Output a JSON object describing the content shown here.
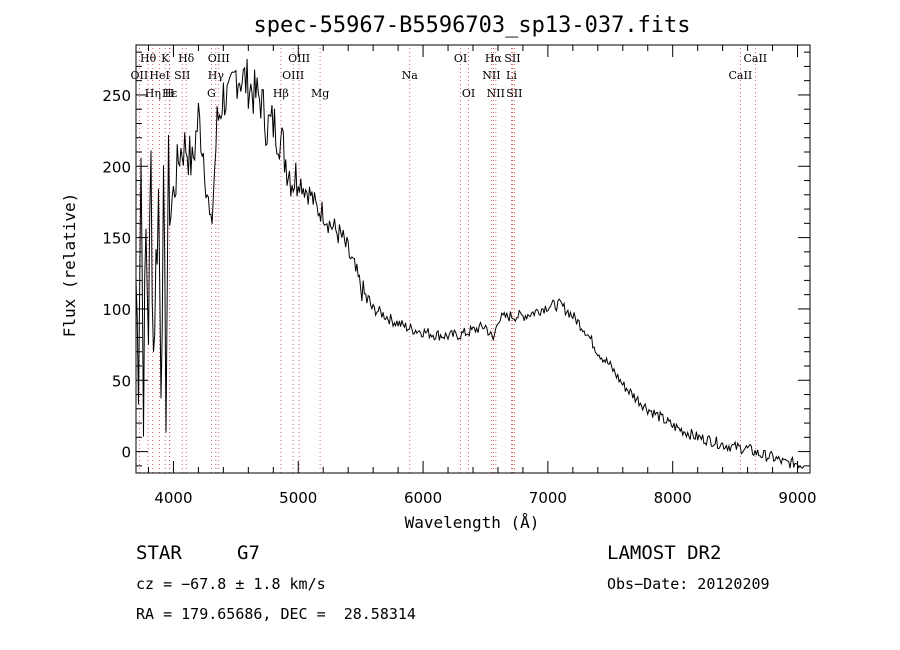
{
  "chart_data": {
    "type": "line",
    "title": "spec-55967-B5596703_sp13-037.fits",
    "xlabel": "Wavelength (Å)",
    "ylabel": "Flux (relative)",
    "xlim": [
      3700,
      9100
    ],
    "ylim": [
      -15,
      285
    ],
    "xticks": [
      4000,
      5000,
      6000,
      7000,
      8000,
      9000
    ],
    "yticks": [
      0,
      50,
      100,
      150,
      200,
      250
    ],
    "grid": false,
    "series": [
      {
        "x": [
          3700,
          3720,
          3740,
          3760,
          3780,
          3800,
          3820,
          3840,
          3860,
          3880,
          3900,
          3920,
          3940,
          3960,
          3980,
          4000,
          4050,
          4100,
          4150,
          4200,
          4250,
          4300,
          4350,
          4400,
          4450,
          4500,
          4550,
          4600,
          4650,
          4700,
          4750,
          4800,
          4850,
          4900,
          4950,
          5000,
          5050,
          5100,
          5150,
          5200,
          5250,
          5300,
          5350,
          5400,
          5450,
          5500,
          5550,
          5600,
          5650,
          5700,
          5750,
          5800,
          5900,
          6000,
          6100,
          6200,
          6300,
          6400,
          6500,
          6563,
          6600,
          6700,
          6800,
          6900,
          7000,
          7100,
          7200,
          7300,
          7400,
          7500,
          7600,
          7700,
          7800,
          7900,
          8000,
          8100,
          8200,
          8300,
          8400,
          8500,
          8600,
          8700,
          8800,
          8900,
          9000,
          9050
        ],
        "y": [
          120,
          60,
          210,
          40,
          150,
          90,
          200,
          70,
          130,
          180,
          60,
          170,
          40,
          190,
          170,
          180,
          210,
          215,
          200,
          235,
          205,
          150,
          230,
          250,
          245,
          265,
          262,
          258,
          250,
          247,
          228,
          230,
          222,
          205,
          192,
          192,
          185,
          180,
          170,
          168,
          160,
          155,
          150,
          140,
          128,
          115,
          106,
          100,
          98,
          95,
          92,
          90,
          86,
          84,
          82,
          81,
          82,
          85,
          88,
          78,
          93,
          95,
          95,
          98,
          102,
          103,
          95,
          85,
          70,
          60,
          47,
          38,
          30,
          24,
          18,
          14,
          10,
          8,
          5,
          3,
          2,
          -2,
          -4,
          -8,
          -8,
          -10
        ]
      }
    ],
    "emission_lines": [
      {
        "label": "Hθ",
        "wave": 3797,
        "row": 1
      },
      {
        "label": "K",
        "wave": 3934,
        "row": 1
      },
      {
        "label": "Hδ",
        "wave": 4102,
        "row": 1
      },
      {
        "label": "OIII",
        "wave": 4363,
        "row": 1
      },
      {
        "label": "OIII",
        "wave": 5007,
        "row": 1
      },
      {
        "label": "OI",
        "wave": 6300,
        "row": 1
      },
      {
        "label": "Hα",
        "wave": 6563,
        "row": 1
      },
      {
        "label": "SII",
        "wave": 6716,
        "row": 1
      },
      {
        "label": "CaII",
        "wave": 8662,
        "row": 1
      },
      {
        "label": "OII",
        "wave": 3727,
        "row": 2
      },
      {
        "label": "HeI",
        "wave": 3889,
        "row": 2
      },
      {
        "label": "SII",
        "wave": 4070,
        "row": 2
      },
      {
        "label": "Hγ",
        "wave": 4340,
        "row": 2
      },
      {
        "label": "OIII",
        "wave": 4959,
        "row": 2
      },
      {
        "label": "Na",
        "wave": 5893,
        "row": 2
      },
      {
        "label": "NII",
        "wave": 6548,
        "row": 2
      },
      {
        "label": "Li",
        "wave": 6708,
        "row": 2
      },
      {
        "label": "CaII",
        "wave": 8542,
        "row": 2
      },
      {
        "label": "Hε",
        "wave": 3970,
        "row": 3
      },
      {
        "label": "Hη",
        "wave": 3835,
        "row": 3
      },
      {
        "label": "H",
        "wave": 3968,
        "row": 3
      },
      {
        "label": "G",
        "wave": 4304,
        "row": 3
      },
      {
        "label": "Hβ",
        "wave": 4861,
        "row": 3
      },
      {
        "label": "Mg",
        "wave": 5175,
        "row": 3
      },
      {
        "label": "OI",
        "wave": 6364,
        "row": 3
      },
      {
        "label": "NII",
        "wave": 6583,
        "row": 3
      },
      {
        "label": "SII",
        "wave": 6731,
        "row": 3
      }
    ]
  },
  "info": {
    "object_class": "STAR",
    "subclass": "G7",
    "survey": "LAMOST DR2",
    "cz": "cz = −67.8 ± 1.8 km/s",
    "obs_date": "Obs−Date: 20120209",
    "coords": "RA = 179.65686, DEC =  28.58314"
  }
}
